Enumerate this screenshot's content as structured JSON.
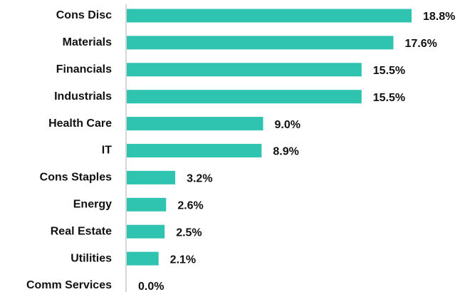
{
  "chart_data": {
    "type": "bar",
    "orientation": "horizontal",
    "categories": [
      "Cons Disc",
      "Materials",
      "Financials",
      "Industrials",
      "Health Care",
      "IT",
      "Cons Staples",
      "Energy",
      "Real Estate",
      "Utilities",
      "Comm Services"
    ],
    "values": [
      18.8,
      17.6,
      15.5,
      15.5,
      9.0,
      8.9,
      3.2,
      2.6,
      2.5,
      2.1,
      0.0
    ],
    "value_labels": [
      "18.8%",
      "17.6%",
      "15.5%",
      "15.5%",
      "9.0%",
      "8.9%",
      "3.2%",
      "2.6%",
      "2.5%",
      "2.1%",
      "0.0%"
    ],
    "color": "#2ec4b0"
  }
}
